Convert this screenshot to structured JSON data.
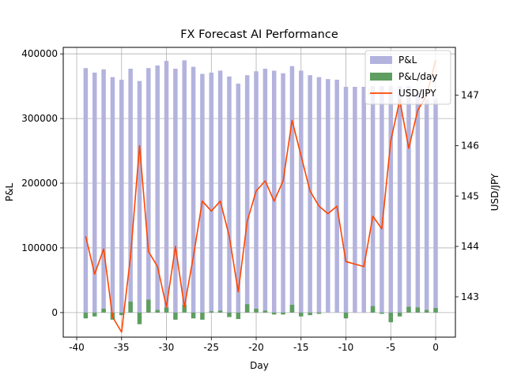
{
  "chart_data": {
    "type": "bar",
    "title": "FX Forecast AI Performance",
    "xlabel": "Day",
    "ylabel": "P&L",
    "y2label": "USD/JPY",
    "grid": true,
    "legend_position": "top-right",
    "xlim": [
      -41.5,
      2.2
    ],
    "ylim": [
      -38000,
      410000
    ],
    "y2lim": [
      142.2,
      147.95
    ],
    "xticks": [
      -40,
      -35,
      -30,
      -25,
      -20,
      -15,
      -10,
      -5,
      0
    ],
    "yticks": [
      0,
      100000,
      200000,
      300000,
      400000
    ],
    "y2ticks": [
      143,
      144,
      145,
      146,
      147
    ],
    "x": [
      -39,
      -38,
      -37,
      -36,
      -35,
      -34,
      -33,
      -32,
      -31,
      -30,
      -29,
      -28,
      -27,
      -26,
      -25,
      -24,
      -23,
      -22,
      -21,
      -20,
      -19,
      -18,
      -17,
      -16,
      -15,
      -14,
      -13,
      -12,
      -11,
      -10,
      -9,
      -8,
      -7,
      -6,
      -5,
      -4,
      -3,
      -2,
      -1,
      0
    ],
    "series": [
      {
        "name": "P&L",
        "kind": "bar",
        "axis": "left",
        "color": "#b3b3de",
        "values": [
          378000,
          371000,
          376000,
          364000,
          360000,
          377000,
          358000,
          378000,
          382000,
          389000,
          377000,
          390000,
          380000,
          369000,
          371000,
          374000,
          365000,
          354000,
          367000,
          373000,
          377000,
          374000,
          370000,
          381000,
          374000,
          367000,
          364000,
          361000,
          360000,
          349000,
          349000,
          349000,
          350000,
          350000,
          350000,
          350000,
          350000,
          340000,
          330000,
          330000
        ]
      },
      {
        "name": "P&L/day",
        "kind": "bar",
        "axis": "left",
        "color": "#5e9e60",
        "values": [
          -9000,
          -6000,
          6000,
          -11000,
          -4000,
          17000,
          -18000,
          20000,
          4000,
          8000,
          -11000,
          12000,
          -9000,
          -11000,
          2000,
          3000,
          -7000,
          -10000,
          13000,
          6000,
          3000,
          -3000,
          -3000,
          12000,
          -6000,
          -4000,
          -2000,
          0,
          0,
          -9000,
          0,
          0,
          10000,
          -2000,
          -15000,
          -6000,
          9000,
          8000,
          4000,
          7000
        ]
      },
      {
        "name": "USD/JPY",
        "kind": "line",
        "axis": "right",
        "color": "#ff4500",
        "values": [
          144.2,
          143.45,
          143.95,
          142.6,
          142.3,
          143.8,
          146.0,
          143.9,
          143.6,
          142.8,
          144.0,
          142.8,
          143.8,
          144.9,
          144.7,
          144.9,
          144.2,
          143.1,
          144.5,
          145.1,
          145.3,
          144.9,
          145.3,
          146.5,
          145.8,
          145.1,
          144.8,
          144.65,
          144.8,
          143.7,
          143.65,
          143.6,
          144.6,
          144.35,
          146.1,
          146.9,
          145.95,
          146.7,
          147.0,
          147.7
        ]
      }
    ]
  }
}
